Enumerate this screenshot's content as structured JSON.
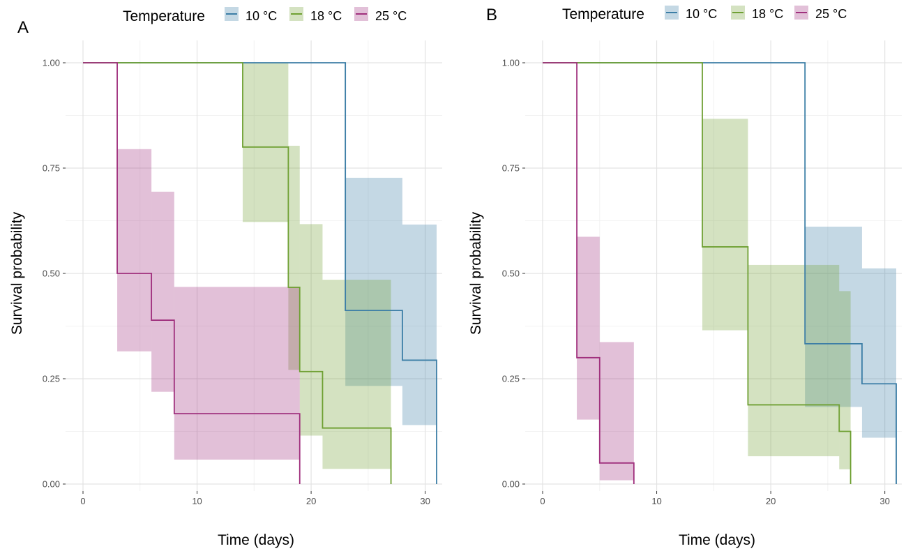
{
  "legend": {
    "title": "Temperature",
    "items": [
      {
        "label": "10 °C",
        "color": "#3C7EA6"
      },
      {
        "label": "18 °C",
        "color": "#6FA033"
      },
      {
        "label": "25 °C",
        "color": "#A0307D"
      }
    ]
  },
  "chart_data": [
    {
      "panel": "A",
      "type": "line",
      "step": true,
      "xlabel": "Time (days)",
      "ylabel": "Survival probability",
      "xlim": [
        0,
        31
      ],
      "ylim": [
        0,
        1
      ],
      "xticks": [
        "0",
        "10",
        "20",
        "30"
      ],
      "yticks": [
        "0.00",
        "0.25",
        "0.50",
        "0.75",
        "1.00"
      ],
      "grid": true,
      "legend_position": "top",
      "series": [
        {
          "name": "10 °C",
          "color": "#3C7EA6",
          "x": [
            0,
            23,
            28,
            31
          ],
          "y": [
            1.0,
            0.412,
            0.294,
            0.0
          ],
          "lower": [
            1.0,
            0.233,
            0.14,
            0.0
          ],
          "upper": [
            1.0,
            0.727,
            0.616,
            0.0
          ]
        },
        {
          "name": "18 °C",
          "color": "#6FA033",
          "x": [
            0,
            14,
            18,
            19,
            21,
            27
          ],
          "y": [
            1.0,
            0.8,
            0.467,
            0.267,
            0.133,
            0.0
          ],
          "lower": [
            1.0,
            0.622,
            0.271,
            0.115,
            0.036,
            0.0
          ],
          "upper": [
            1.0,
            1.0,
            0.803,
            0.617,
            0.485,
            0.0
          ]
        },
        {
          "name": "25 °C",
          "color": "#A0307D",
          "x": [
            0,
            3,
            6,
            8,
            19
          ],
          "y": [
            1.0,
            0.5,
            0.389,
            0.167,
            0.0
          ],
          "lower": [
            1.0,
            0.315,
            0.219,
            0.058,
            0.0
          ],
          "upper": [
            1.0,
            0.795,
            0.694,
            0.468,
            0.0
          ]
        }
      ]
    },
    {
      "panel": "B",
      "type": "line",
      "step": true,
      "xlabel": "Time (days)",
      "ylabel": "Survival probability",
      "xlim": [
        0,
        31
      ],
      "ylim": [
        0,
        1
      ],
      "xticks": [
        "0",
        "10",
        "20",
        "30"
      ],
      "yticks": [
        "0.00",
        "0.25",
        "0.50",
        "0.75",
        "1.00"
      ],
      "grid": true,
      "legend_position": "top",
      "series": [
        {
          "name": "10 °C",
          "color": "#3C7EA6",
          "x": [
            0,
            23,
            28,
            31
          ],
          "y": [
            1.0,
            0.333,
            0.238,
            0.0
          ],
          "lower": [
            1.0,
            0.183,
            0.11,
            0.0
          ],
          "upper": [
            1.0,
            0.611,
            0.512,
            0.0
          ]
        },
        {
          "name": "18 °C",
          "color": "#6FA033",
          "x": [
            0,
            14,
            18,
            26,
            27
          ],
          "y": [
            1.0,
            0.563,
            0.188,
            0.125,
            0.0
          ],
          "lower": [
            1.0,
            0.365,
            0.066,
            0.035,
            0.0
          ],
          "upper": [
            1.0,
            0.867,
            0.52,
            0.458,
            0.0
          ]
        },
        {
          "name": "25 °C",
          "color": "#A0307D",
          "x": [
            0,
            3,
            5,
            8
          ],
          "y": [
            1.0,
            0.3,
            0.05,
            0.0
          ],
          "lower": [
            1.0,
            0.153,
            0.009,
            0.0
          ],
          "upper": [
            1.0,
            0.587,
            0.337,
            0.0
          ]
        }
      ]
    }
  ]
}
